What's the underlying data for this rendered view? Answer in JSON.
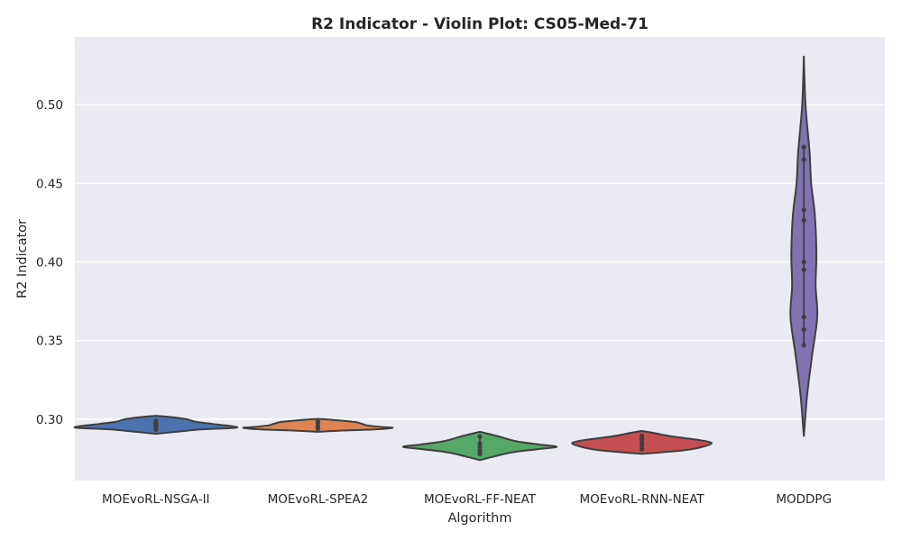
{
  "chart_data": {
    "type": "violin",
    "title": "R2 Indicator - Violin Plot: CS05-Med-71",
    "xlabel": "Algorithm",
    "ylabel": "R2 Indicator",
    "ylim": [
      0.261,
      0.543
    ],
    "yticks": [
      0.3,
      0.35,
      0.4,
      0.45,
      0.5
    ],
    "ytick_labels": [
      "0.30",
      "0.35",
      "0.40",
      "0.45",
      "0.50"
    ],
    "grid": true,
    "background": "#eaeaf2",
    "grid_color": "#ffffff",
    "edge_color": "#3f3f3f",
    "categories": [
      "MOEvoRL-NSGA-II",
      "MOEvoRL-SPEA2",
      "MOEvoRL-FF-NEAT",
      "MOEvoRL-RNN-NEAT",
      "MODDPG"
    ],
    "series": [
      {
        "color": "#4c72b0",
        "points": [
          0.2935,
          0.295,
          0.296,
          0.2975,
          0.299
        ],
        "profile": [
          [
            0.2907,
            0.0
          ],
          [
            0.292,
            0.25
          ],
          [
            0.2935,
            0.55
          ],
          [
            0.2945,
            0.97
          ],
          [
            0.2955,
            0.95
          ],
          [
            0.297,
            0.7
          ],
          [
            0.2985,
            0.48
          ],
          [
            0.2998,
            0.4
          ],
          [
            0.301,
            0.25
          ],
          [
            0.3022,
            0.0
          ]
        ]
      },
      {
        "color": "#dd8452",
        "points": [
          0.294,
          0.2955,
          0.2975,
          0.2985
        ],
        "profile": [
          [
            0.292,
            0.0
          ],
          [
            0.2928,
            0.3
          ],
          [
            0.2935,
            0.7
          ],
          [
            0.2945,
            0.92
          ],
          [
            0.295,
            0.8
          ],
          [
            0.296,
            0.62
          ],
          [
            0.297,
            0.55
          ],
          [
            0.2983,
            0.45
          ],
          [
            0.2995,
            0.2
          ],
          [
            0.3002,
            0.0
          ]
        ]
      },
      {
        "color": "#55a868",
        "points": [
          0.278,
          0.28,
          0.282,
          0.2845,
          0.289
        ],
        "profile": [
          [
            0.274,
            0.0
          ],
          [
            0.276,
            0.15
          ],
          [
            0.279,
            0.4
          ],
          [
            0.281,
            0.72
          ],
          [
            0.2825,
            0.95
          ],
          [
            0.284,
            0.72
          ],
          [
            0.286,
            0.45
          ],
          [
            0.2895,
            0.2
          ],
          [
            0.292,
            0.0
          ]
        ]
      },
      {
        "color": "#c44e52",
        "points": [
          0.281,
          0.2835,
          0.2855,
          0.2875,
          0.2895
        ],
        "profile": [
          [
            0.278,
            0.0
          ],
          [
            0.279,
            0.25
          ],
          [
            0.2805,
            0.55
          ],
          [
            0.2825,
            0.75
          ],
          [
            0.285,
            0.86
          ],
          [
            0.287,
            0.68
          ],
          [
            0.289,
            0.38
          ],
          [
            0.2915,
            0.12
          ],
          [
            0.2925,
            0.0
          ]
        ]
      },
      {
        "color": "#8172b3",
        "points": [
          0.347,
          0.357,
          0.365,
          0.395,
          0.4,
          0.4265,
          0.433,
          0.465,
          0.473
        ],
        "profile": [
          [
            0.289,
            0.0
          ],
          [
            0.315,
            0.04
          ],
          [
            0.34,
            0.1
          ],
          [
            0.365,
            0.165
          ],
          [
            0.385,
            0.145
          ],
          [
            0.405,
            0.155
          ],
          [
            0.43,
            0.135
          ],
          [
            0.45,
            0.09
          ],
          [
            0.47,
            0.07
          ],
          [
            0.5,
            0.02
          ],
          [
            0.531,
            0.0
          ]
        ]
      }
    ]
  }
}
